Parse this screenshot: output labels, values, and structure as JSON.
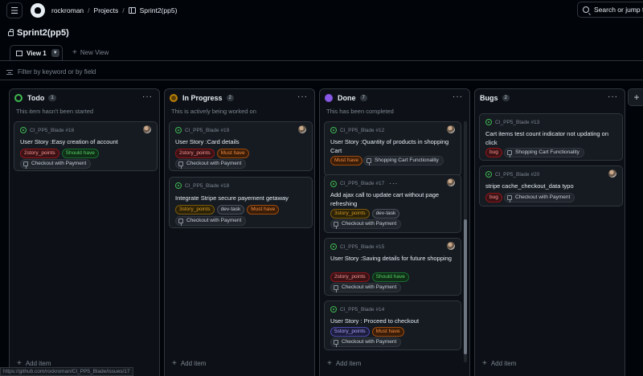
{
  "header": {
    "owner": "rockroman",
    "projects": "Projects",
    "project_name": "Sprint2(pp5)",
    "search": "Search or jump to"
  },
  "project_title": "Sprint2(pp5)",
  "views": {
    "active": "View 1",
    "new_view": "New View"
  },
  "filter_placeholder": "Filter by keyword or by field",
  "add_item_label": "Add item",
  "status_url": "https://github.com/rockroman/CI_PP5_Blade/issues/17",
  "columns": [
    {
      "name": "Todo",
      "count": "1",
      "color": "#3fb950",
      "description": "This item hasn't been started",
      "cards": [
        {
          "id": "CI_PP5_Blade #16",
          "title": "User Story :Easy creation of account",
          "labels": [
            {
              "text": "2story_points",
              "style": "red"
            },
            {
              "text": "Should have",
              "style": "green"
            }
          ],
          "milestone": "Checkout with Payment"
        }
      ]
    },
    {
      "name": "In Progress",
      "count": "2",
      "color": "#bb8009",
      "description": "This is actively being worked on",
      "cards": [
        {
          "id": "CI_PP5_Blade #19",
          "title": "User Story :Card details",
          "labels": [
            {
              "text": "2story_points",
              "style": "red"
            },
            {
              "text": "Must have",
              "style": "orange"
            }
          ],
          "milestone": "Checkout with Payment"
        },
        {
          "id": "CI_PP5_Blade #18",
          "title": "Integrate Stripe secure payement getaway",
          "labels": [
            {
              "text": "3story_points",
              "style": "yellow"
            },
            {
              "text": "dev-task",
              "style": "gray"
            },
            {
              "text": "Must have",
              "style": "orange"
            }
          ],
          "milestone": "Checkout with Payment"
        }
      ]
    },
    {
      "name": "Done",
      "count": "7",
      "color": "#8957e5",
      "description": "This has been completed",
      "cards": [
        {
          "id": "CI_PP5_Blade #12",
          "title": "User Story :Quantity of products in shopping Cart",
          "labels": [
            {
              "text": "Must have",
              "style": "orange"
            }
          ],
          "milestone": "Shopping Cart Functionality"
        },
        {
          "id": "CI_PP5_Blade #17",
          "title": "Add ajax call to update cart without page refreshing",
          "labels": [
            {
              "text": "3story_points",
              "style": "yellow"
            },
            {
              "text": "dev-task",
              "style": "gray"
            }
          ],
          "milestone": "Checkout with Payment"
        },
        {
          "id": "CI_PP5_Blade #15",
          "title": "User Story :Saving details for future shopping",
          "labels": [
            {
              "text": "2story_points",
              "style": "red"
            },
            {
              "text": "Should have",
              "style": "green"
            }
          ],
          "milestone": "Checkout with Payment"
        },
        {
          "id": "CI_PP5_Blade #14",
          "title": "User Story : Proceed to checkout",
          "labels": [
            {
              "text": "5story_points",
              "style": "purple"
            },
            {
              "text": "Must have",
              "style": "orange"
            }
          ],
          "milestone": "Checkout with Payment"
        }
      ]
    },
    {
      "name": "Bugs",
      "count": "2",
      "color": "",
      "description": "",
      "cards": [
        {
          "id": "CI_PP5_Blade #13",
          "title": "Cart items test count indicator not updating on click",
          "labels": [
            {
              "text": "bug",
              "style": "red"
            }
          ],
          "milestone": "Shopping Cart Functionality"
        },
        {
          "id": "CI_PP5_Blade #20",
          "title": "stripe cache_checkout_data typo",
          "labels": [
            {
              "text": "bug",
              "style": "red"
            }
          ],
          "milestone": "Checkout with Payment"
        }
      ]
    }
  ]
}
